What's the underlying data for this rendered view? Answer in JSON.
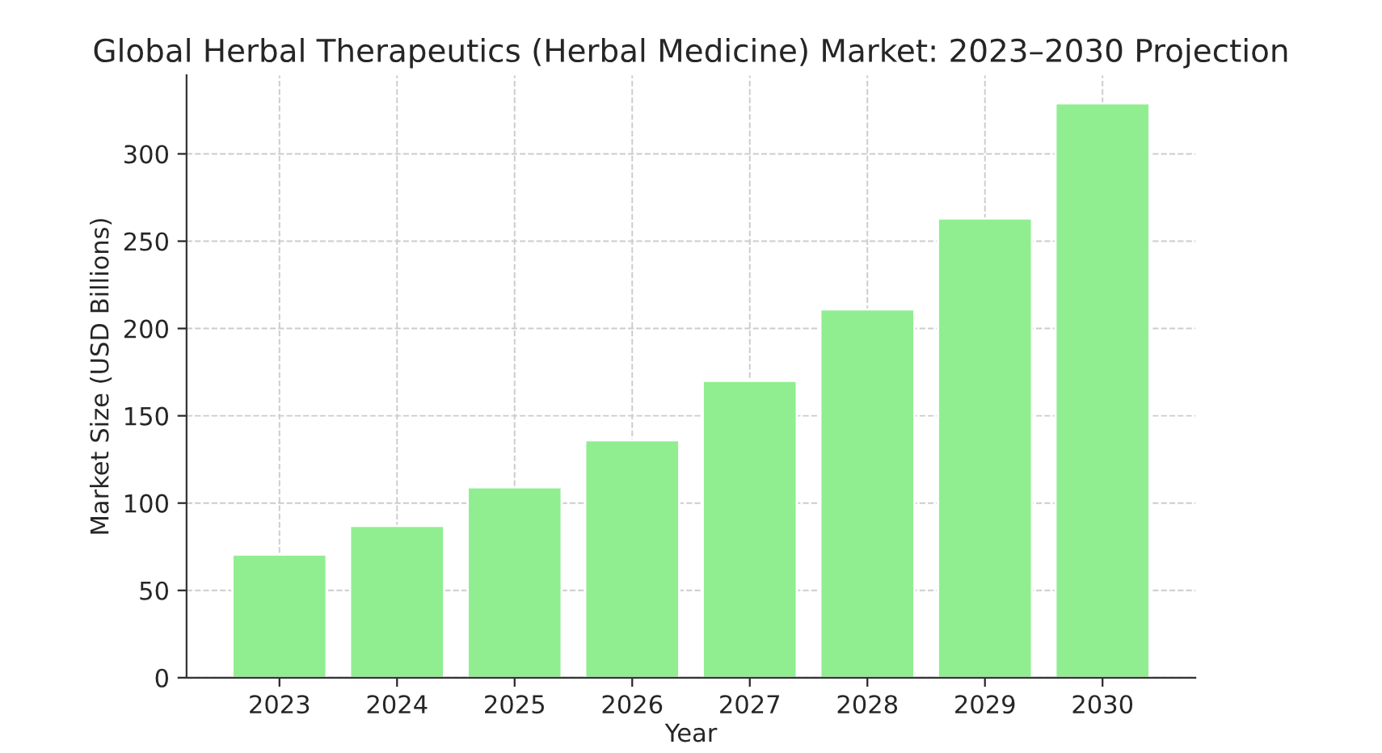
{
  "chart_data": {
    "type": "bar",
    "title": "Global Herbal Therapeutics (Herbal Medicine) Market: 2023–2030 Projection",
    "xlabel": "Year",
    "ylabel": "Market Size (USD Billions)",
    "categories": [
      "2023",
      "2024",
      "2025",
      "2026",
      "2027",
      "2028",
      "2029",
      "2030"
    ],
    "values": [
      70.5,
      87,
      109,
      136,
      170,
      211,
      263,
      329
    ],
    "color": "#90ee90",
    "ylim": [
      0,
      345
    ],
    "yticks": [
      0,
      50,
      100,
      150,
      200,
      250,
      300
    ],
    "grid": true
  }
}
